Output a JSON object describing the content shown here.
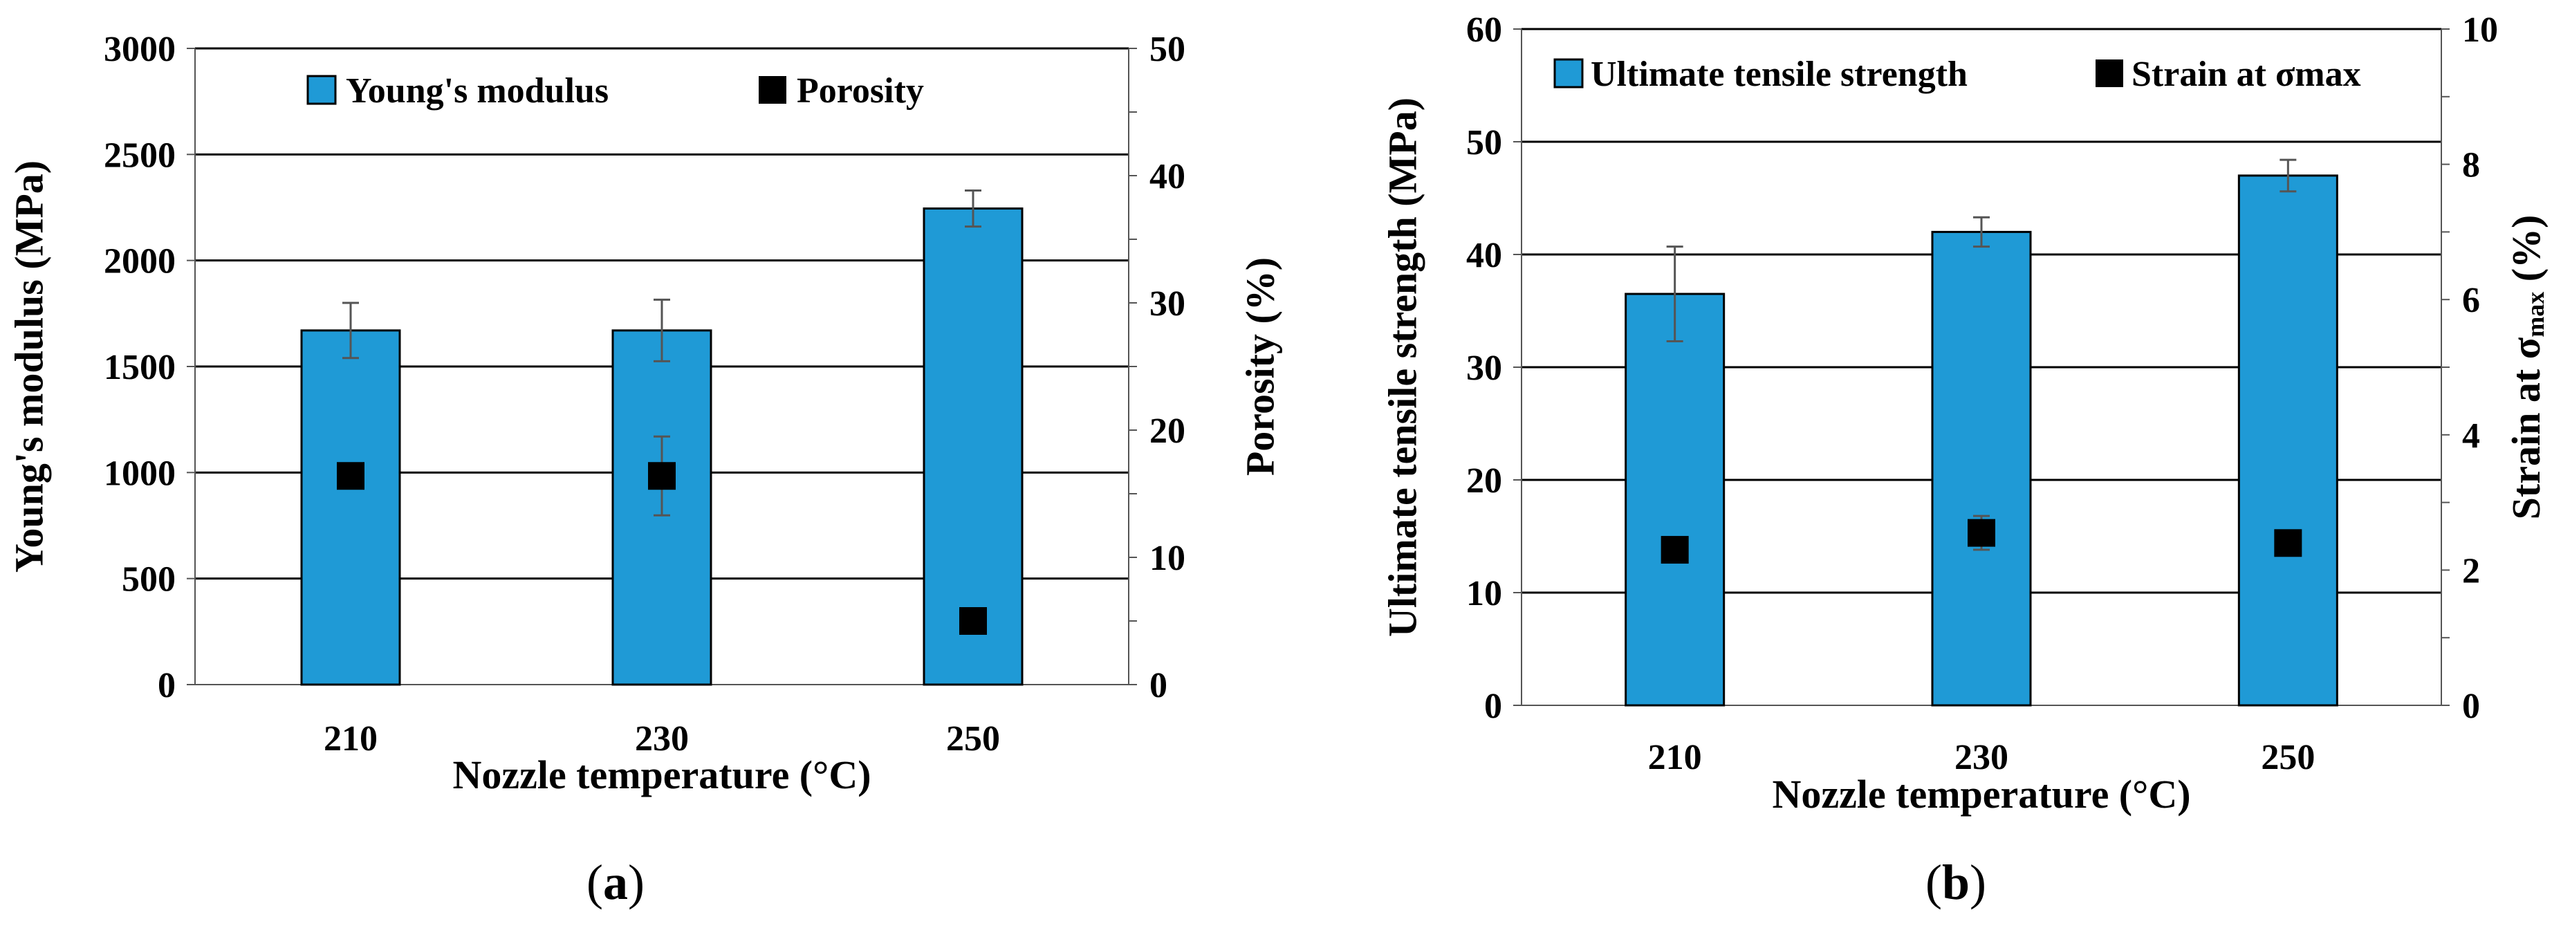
{
  "figure": {
    "caption_a": "(a)",
    "caption_b": "(b)"
  },
  "chart_data": [
    {
      "type": "bar",
      "panel": "a",
      "xlabel": "Nozzle temperature (°C)",
      "ylabel": "Young's modulus (MPa)",
      "y2label": "Porosity (%)",
      "categories": [
        "210",
        "230",
        "250"
      ],
      "ylim": [
        0,
        3000
      ],
      "yticks": [
        0,
        500,
        1000,
        1500,
        2000,
        2500,
        3000
      ],
      "y2lim": [
        0,
        50
      ],
      "y2ticks": [
        0,
        10,
        20,
        30,
        40,
        50
      ],
      "grid": true,
      "legend_position": "top",
      "series": [
        {
          "name": "Young's modulus",
          "kind": "bar",
          "axis": "left",
          "color": "#1f9ad6",
          "values": [
            1670,
            1670,
            2245
          ],
          "error": [
            130,
            145,
            85
          ]
        },
        {
          "name": "Porosity",
          "kind": "scatter",
          "marker": "square",
          "axis": "right",
          "color": "#000000",
          "values": [
            16.4,
            16.4,
            5.0
          ],
          "error": [
            0,
            3.1,
            0
          ]
        }
      ]
    },
    {
      "type": "bar",
      "panel": "b",
      "xlabel": "Nozzle  temperature (°C)",
      "ylabel": "Ultimate tensile strength (MPa)",
      "y2label": "Strain at σmax (%)",
      "y2label_main": "Strain at σ",
      "y2label_sub": "max",
      "y2label_end": " (%)",
      "categories": [
        "210",
        "230",
        "250"
      ],
      "ylim": [
        0,
        60
      ],
      "yticks": [
        0,
        10,
        20,
        30,
        40,
        50,
        60
      ],
      "y2lim": [
        0,
        10
      ],
      "y2ticks": [
        0,
        2,
        4,
        6,
        8,
        10
      ],
      "grid": true,
      "legend_position": "top",
      "series": [
        {
          "name": "Ultimate tensile strength",
          "kind": "bar",
          "axis": "left",
          "color": "#1f9ad6",
          "values": [
            36.5,
            42.0,
            47.0
          ],
          "error": [
            4.2,
            1.3,
            1.4
          ]
        },
        {
          "name": "Strain at σmax",
          "kind": "scatter",
          "marker": "square",
          "axis": "right",
          "color": "#000000",
          "values": [
            2.3,
            2.55,
            2.4
          ],
          "error": [
            0,
            0.25,
            0
          ]
        }
      ]
    }
  ]
}
